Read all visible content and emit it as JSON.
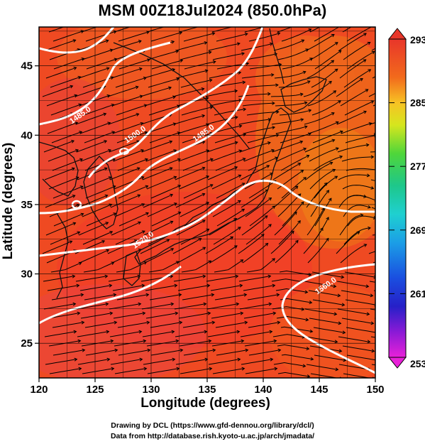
{
  "title": "MSM 00Z18Jul2024 (850.0hPa)",
  "x_axis": {
    "label": "Longitude (degrees)",
    "min": 120,
    "max": 150,
    "ticks": [
      "120",
      "125",
      "130",
      "135",
      "140",
      "145",
      "150"
    ]
  },
  "y_axis": {
    "label": "Latitude  (degrees)",
    "min": 22.5,
    "max": 47.8,
    "ticks": [
      "25",
      "30",
      "35",
      "40",
      "45"
    ]
  },
  "colorbar": {
    "min": 253,
    "max": 293,
    "labels": [
      "293",
      "285",
      "277",
      "269",
      "261",
      "253"
    ],
    "label_values": [
      293,
      285,
      277,
      269,
      261,
      253
    ]
  },
  "contours": [
    {
      "label": "1485.0",
      "text_lon": 123.8,
      "text_lat": 41.3
    },
    {
      "label": "1500.0",
      "text_lon": 128.7,
      "text_lat": 39.9
    },
    {
      "label": "1485.0",
      "text_lon": 134.8,
      "text_lat": 40.0
    },
    {
      "label": "1520.0",
      "text_lon": 129.4,
      "text_lat": 32.3
    },
    {
      "label": "1560.0",
      "text_lon": 145.7,
      "text_lat": 29.0
    }
  ],
  "credit_line1": "Drawing by DCL (https://www.gfd-dennou.org/library/dcl/)",
  "credit_line2": "Data from http://database.rish.kyoto-u.ac.jp/arch/jmadata/",
  "colors": {
    "field_warm": "#ef4a22",
    "field_hot": "#f23a2a",
    "field_cool": "#ee7a18",
    "streamline": "#000000",
    "contour": "#ffffff"
  }
}
